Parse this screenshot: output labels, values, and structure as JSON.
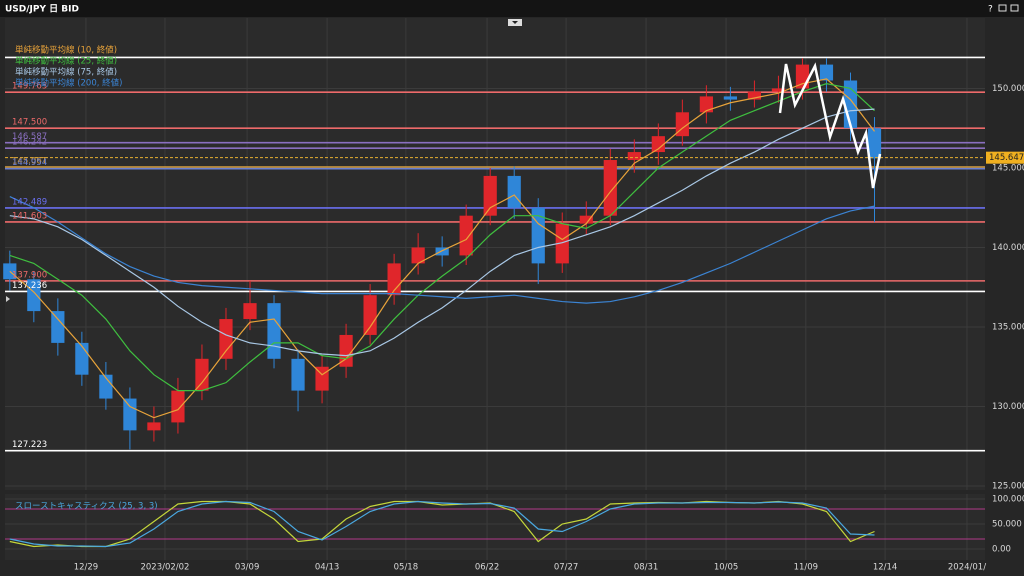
{
  "window": {
    "title": "USD/JPY 日 BID",
    "help": "?"
  },
  "chart_data": [
    {
      "type": "candlestick",
      "xlim": [
        -0.2,
        40.6
      ],
      "ylim": [
        124.75,
        154.43
      ],
      "xticks": [
        {
          "value": 3.17,
          "label": "12/29"
        },
        {
          "value": 6.46,
          "label": "2023/02/02"
        },
        {
          "value": 9.88,
          "label": "03/09"
        },
        {
          "value": 13.21,
          "label": "04/13"
        },
        {
          "value": 16.49,
          "label": "05/18"
        },
        {
          "value": 19.87,
          "label": "06/22"
        },
        {
          "value": 23.16,
          "label": "07/27"
        },
        {
          "value": 26.49,
          "label": "08/31"
        },
        {
          "value": 29.82,
          "label": "10/05"
        },
        {
          "value": 33.14,
          "label": "11/09"
        },
        {
          "value": 36.44,
          "label": "12/14"
        },
        {
          "value": 39.85,
          "label": "2024/01/"
        }
      ],
      "yticks": [
        {
          "value": 125,
          "label": "125.000"
        },
        {
          "value": 130,
          "label": "130.000"
        },
        {
          "value": 135,
          "label": "135.000"
        },
        {
          "value": 140,
          "label": "140.000"
        },
        {
          "value": 145,
          "label": "145.000"
        },
        {
          "value": 150,
          "label": "150.000"
        }
      ],
      "grid": true,
      "up_color": "#e0262b",
      "down_color": "#2f86d8",
      "open": [
        139,
        138,
        136,
        134,
        132,
        130.5,
        128.5,
        129,
        131,
        133,
        135.5,
        136.5,
        133,
        131,
        132.5,
        134.5,
        137,
        139,
        140,
        139.5,
        142,
        144.5,
        142.5,
        139,
        141.5,
        142,
        145.5,
        146,
        147,
        148.5,
        149.5,
        149.3,
        149.8,
        150,
        151.5,
        150.5,
        147.5
      ],
      "high": [
        139.8,
        138.5,
        136.8,
        134.7,
        132.8,
        131.2,
        130,
        131.8,
        133.9,
        136.2,
        137.9,
        137,
        133.6,
        133.2,
        135.2,
        137.7,
        139.6,
        140.9,
        140.7,
        142.7,
        145,
        145.1,
        143.1,
        142.2,
        142.9,
        146.2,
        146.8,
        147.8,
        149.3,
        150.2,
        150.1,
        150.5,
        150.8,
        151.9,
        151.9,
        151,
        148.2
      ],
      "low": [
        137.3,
        135.3,
        133.2,
        131.3,
        129.8,
        127.3,
        127.8,
        128.3,
        130.4,
        132.3,
        134.8,
        132.4,
        129.7,
        130.2,
        131.8,
        133.9,
        136.4,
        138.3,
        138.8,
        138.9,
        141.4,
        141.8,
        137.7,
        138.4,
        140.8,
        141.4,
        144.7,
        145.2,
        146.4,
        147.8,
        148.6,
        148.8,
        149.1,
        149.3,
        149.8,
        146.7,
        141.6
      ],
      "close": [
        138,
        136,
        134,
        132,
        130.5,
        128.5,
        129,
        131,
        133,
        135.5,
        136.5,
        133,
        131,
        132.5,
        134.5,
        137,
        139,
        140,
        139.5,
        142,
        144.5,
        142.5,
        139,
        141.5,
        142,
        145.5,
        146,
        147,
        148.5,
        149.5,
        149.3,
        149.8,
        150,
        151.5,
        150.5,
        147.5,
        145.6
      ],
      "series": [
        {
          "name": "単純移動平均線 (10, 終値)",
          "color": "#e8a33a",
          "values": [
            138.5,
            137.2,
            135.5,
            133.8,
            131.8,
            130,
            129.3,
            129.8,
            131.5,
            133.5,
            135.3,
            135.5,
            133.5,
            132,
            133,
            135,
            137.3,
            139,
            139.8,
            140.5,
            142.5,
            143.3,
            141.5,
            140.5,
            141.5,
            143.5,
            145.3,
            146.2,
            147.5,
            148.6,
            149.1,
            149.4,
            149.7,
            150.3,
            150.6,
            149.3,
            147.3
          ]
        },
        {
          "name": "単純移動平均線 (25, 終値)",
          "color": "#3fbf3f",
          "values": [
            139.5,
            139,
            138,
            137,
            135.5,
            133.5,
            132,
            131,
            131,
            131.5,
            132.8,
            134,
            134,
            133.2,
            133,
            133.8,
            135.5,
            137,
            138.2,
            139.3,
            140.8,
            142,
            142,
            141.5,
            141.2,
            142,
            143.5,
            145,
            146,
            147,
            148,
            148.6,
            149.2,
            149.8,
            150.3,
            150,
            148.6
          ]
        },
        {
          "name": "単純移動平均線 (75, 終値)",
          "color": "#a9c8e6",
          "values": [
            142,
            141.8,
            141.3,
            140.5,
            139.5,
            138.5,
            137.5,
            136.3,
            135.3,
            134.5,
            134,
            133.8,
            133.5,
            133.3,
            133.2,
            133.5,
            134.3,
            135.3,
            136.2,
            137.3,
            138.5,
            139.5,
            140,
            140.3,
            140.8,
            141.3,
            142,
            142.8,
            143.6,
            144.5,
            145.3,
            146,
            146.8,
            147.5,
            148.2,
            148.6,
            148.7
          ]
        },
        {
          "name": "単純移動平均線 (200, 終値)",
          "color": "#3b84d4",
          "values": [
            143.2,
            142.5,
            141.6,
            140.6,
            139.6,
            138.8,
            138.2,
            137.8,
            137.6,
            137.5,
            137.4,
            137.3,
            137.2,
            137.1,
            137.1,
            137.1,
            137.1,
            137,
            136.9,
            136.8,
            136.9,
            137,
            136.8,
            136.6,
            136.5,
            136.6,
            136.9,
            137.3,
            137.8,
            138.4,
            139,
            139.7,
            140.4,
            141.1,
            141.8,
            142.3,
            142.6
          ]
        }
      ],
      "levels": [
        {
          "value": 151.95,
          "color": "#ffffff"
        },
        {
          "value": 149.763,
          "label": "149.763",
          "color": "#ee6a6a"
        },
        {
          "value": 147.5,
          "label": "147.500",
          "color": "#ee6a6a"
        },
        {
          "value": 146.587,
          "label": "146.587",
          "color": "#8a6fc0"
        },
        {
          "value": 146.242,
          "label": "146.242",
          "color": "#8a6fc0"
        },
        {
          "value": 145.061,
          "label": "145.061",
          "color": "#d8a040"
        },
        {
          "value": 144.954,
          "label": "144.954",
          "color": "#6a7fd0"
        },
        {
          "value": 142.489,
          "label": "142.489",
          "color": "#6a6ff0"
        },
        {
          "value": 141.603,
          "label": "141.603",
          "color": "#ee6a6a"
        },
        {
          "value": 137.9,
          "label": "137.900",
          "color": "#ee6a6a"
        },
        {
          "value": 137.236,
          "label": "137.236",
          "color": "#ffffff"
        },
        {
          "value": 127.223,
          "label": "127.223",
          "color": "#ffffff"
        }
      ],
      "current_price": 145.647
    },
    {
      "type": "line",
      "title": "スローストキャスティクス (25, 3, 3)",
      "ylim": [
        -22,
        110
      ],
      "yticks": [
        {
          "value": 0,
          "label": "0.00"
        },
        {
          "value": 50,
          "label": "50.000"
        },
        {
          "value": 100,
          "label": "100.000"
        }
      ],
      "bands": [
        20,
        80
      ],
      "band_color": "#b03a8a",
      "series": [
        {
          "color": "#c4d63a",
          "values": [
            15,
            5,
            8,
            5,
            5,
            20,
            55,
            90,
            95,
            95,
            90,
            60,
            15,
            20,
            60,
            85,
            95,
            95,
            88,
            90,
            92,
            75,
            15,
            50,
            60,
            90,
            92,
            93,
            92,
            95,
            93,
            92,
            95,
            90,
            75,
            15,
            35
          ]
        },
        {
          "color": "#4aa8e0",
          "values": [
            20,
            10,
            6,
            6,
            5,
            12,
            40,
            75,
            90,
            95,
            93,
            75,
            35,
            18,
            45,
            75,
            90,
            95,
            92,
            90,
            91,
            82,
            40,
            35,
            55,
            80,
            90,
            92,
            92,
            93,
            93,
            92,
            94,
            92,
            82,
            30,
            28
          ]
        }
      ]
    }
  ]
}
